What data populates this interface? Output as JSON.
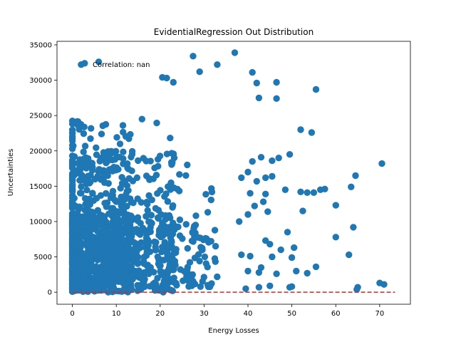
{
  "chart_data": {
    "type": "scatter",
    "title": "EvidentialRegression Out Distribution",
    "xlabel": "Energy Losses",
    "ylabel": "Uncertainties",
    "xlim": [
      -3.5,
      77.0
    ],
    "ylim": [
      -1700,
      35500
    ],
    "xticks": [
      0,
      10,
      20,
      30,
      40,
      50,
      60,
      70
    ],
    "yticks": [
      0,
      5000,
      10000,
      15000,
      20000,
      25000,
      30000,
      35000
    ],
    "annotation": "Correlation: nan",
    "series_color": "#1f77b4",
    "reference_line": {
      "name": "y = 0",
      "color": "#d62728",
      "style": "dashed",
      "x": [
        0,
        73.5
      ],
      "y": [
        0,
        0
      ]
    },
    "cluster": {
      "description": "dense point cloud",
      "count": 1400,
      "x_range": [
        0,
        33
      ],
      "y_range": [
        0,
        24500
      ]
    },
    "outliers": [
      [
        2.0,
        32200
      ],
      [
        2.8,
        32400
      ],
      [
        6.0,
        32600
      ],
      [
        27.5,
        33400
      ],
      [
        37.0,
        33900
      ],
      [
        29.0,
        31200
      ],
      [
        33.0,
        32200
      ],
      [
        20.5,
        30400
      ],
      [
        21.5,
        30300
      ],
      [
        23.0,
        29700
      ],
      [
        41.0,
        31100
      ],
      [
        46.5,
        29700
      ],
      [
        42.0,
        29600
      ],
      [
        55.5,
        28700
      ],
      [
        42.5,
        27500
      ],
      [
        46.5,
        27400
      ],
      [
        52.0,
        23000
      ],
      [
        54.5,
        22600
      ],
      [
        47.0,
        19000
      ],
      [
        49.5,
        19500
      ],
      [
        43.0,
        19100
      ],
      [
        41.0,
        18500
      ],
      [
        45.5,
        18600
      ],
      [
        44.0,
        16200
      ],
      [
        45.5,
        16400
      ],
      [
        40.0,
        17000
      ],
      [
        38.5,
        16200
      ],
      [
        42.0,
        15700
      ],
      [
        64.5,
        16500
      ],
      [
        57.5,
        14600
      ],
      [
        56.5,
        14500
      ],
      [
        53.5,
        14100
      ],
      [
        52.0,
        14200
      ],
      [
        55.0,
        14100
      ],
      [
        63.5,
        14900
      ],
      [
        70.5,
        18200
      ],
      [
        48.5,
        14500
      ],
      [
        44.0,
        13900
      ],
      [
        43.5,
        12800
      ],
      [
        40.5,
        14000
      ],
      [
        41.5,
        12200
      ],
      [
        44.5,
        11400
      ],
      [
        60.0,
        12300
      ],
      [
        52.5,
        11500
      ],
      [
        64.0,
        9200
      ],
      [
        60.0,
        7800
      ],
      [
        49.0,
        8500
      ],
      [
        38.0,
        10000
      ],
      [
        40.0,
        11000
      ],
      [
        44.0,
        7300
      ],
      [
        45.0,
        6800
      ],
      [
        47.5,
        6000
      ],
      [
        50.0,
        4900
      ],
      [
        50.5,
        6300
      ],
      [
        45.5,
        5000
      ],
      [
        40.5,
        5100
      ],
      [
        38.5,
        5300
      ],
      [
        43.0,
        3500
      ],
      [
        40.0,
        3000
      ],
      [
        42.5,
        2800
      ],
      [
        46.5,
        2600
      ],
      [
        51.0,
        3000
      ],
      [
        53.5,
        2700
      ],
      [
        55.5,
        3600
      ],
      [
        63.0,
        5300
      ],
      [
        49.5,
        700
      ],
      [
        50.0,
        800
      ],
      [
        65.0,
        700
      ],
      [
        64.8,
        400
      ],
      [
        70.0,
        1300
      ],
      [
        71.0,
        1100
      ],
      [
        42.5,
        700
      ],
      [
        45.0,
        900
      ],
      [
        39.5,
        500
      ]
    ]
  }
}
